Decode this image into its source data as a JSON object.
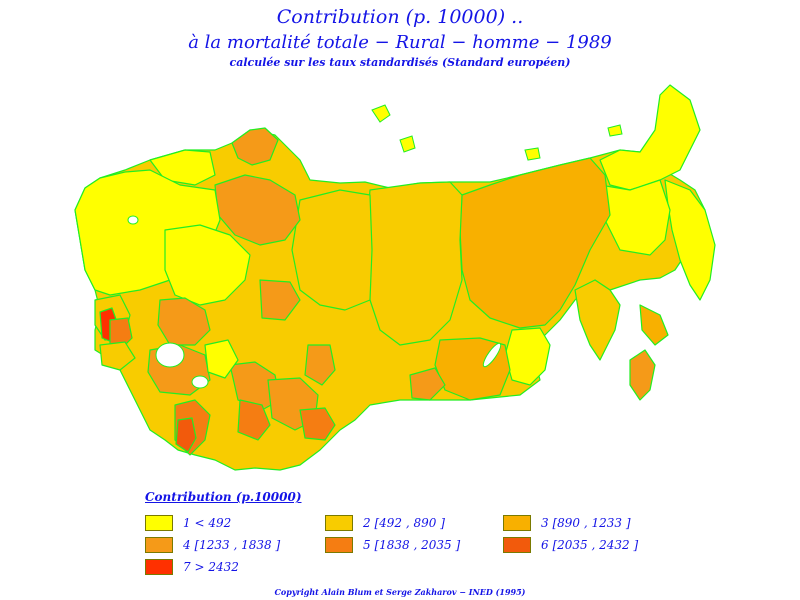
{
  "header": {
    "title_line1": "Contribution (p. 10000) ..",
    "title_line2": "à la mortalité totale − Rural − homme − 1989",
    "subtitle": "calculée sur les taux standardisés (Standard européen)"
  },
  "legend": {
    "title": "Contribution (p.10000)",
    "classes": [
      {
        "label": "1 < 492",
        "color": "#ffff00"
      },
      {
        "label": "2 [492 , 890 ]",
        "color": "#f8cc00"
      },
      {
        "label": "3 [890 , 1233 ]",
        "color": "#f8b000"
      },
      {
        "label": "4 [1233 , 1838 ]",
        "color": "#f59a18"
      },
      {
        "label": "5 [1838 , 2035 ]",
        "color": "#f57d12"
      },
      {
        "label": "6 [2035 , 2432 ]",
        "color": "#f25a0c"
      },
      {
        "label": "7 > 2432",
        "color": "#ff3000"
      }
    ]
  },
  "copyright": "Copyright Alain Blum et Serge Zakharov − INED (1995)",
  "colors": {
    "border": "#22ee22",
    "text": "#1414e6"
  }
}
